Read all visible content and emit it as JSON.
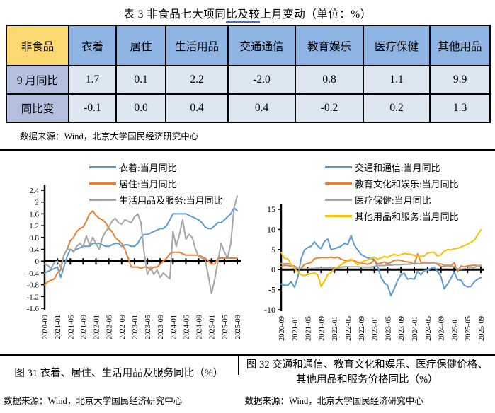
{
  "title": {
    "pre": "表 3  非食品七大项同",
    "underlined": "比及较",
    "post": "上月变动（单位：%）"
  },
  "table": {
    "corner_label": "非食品",
    "columns": [
      "衣着",
      "居住",
      "生活用品",
      "交通通信",
      "教育娱乐",
      "医疗保健",
      "其他用品"
    ],
    "rows": [
      {
        "label": "9 月同比",
        "values": [
          "1.7",
          "0.1",
          "2.2",
          "-2.0",
          "0.8",
          "1.1",
          "9.9"
        ]
      },
      {
        "label": "同比变",
        "values": [
          "-0.1",
          "0.0",
          "0.4",
          "0.4",
          "-0.2",
          "0.2",
          "1.3"
        ]
      }
    ],
    "colors": {
      "corner_bg": "#FBD971",
      "header_bg": "#8DB4E2",
      "row_label_bg": "#B2BFDF",
      "cell_bg": "#DCE6F1",
      "border": "#000000"
    }
  },
  "table_source": "数据来源：Wind，北京大学国民经济研究中心",
  "figures": [
    {
      "caption": "图 31  衣着、居住、生活用品及服务同比（%）",
      "source": "数据来源：Wind，北京大学国民经济研究中心"
    },
    {
      "caption": "图 32  交通和通信、教育文化和娱乐、医疗保健价格、其他用品和服务价格同比（%）",
      "source": "数据来源：Wind，北京大学国民经济研究中心"
    }
  ],
  "chart_data": [
    {
      "type": "line",
      "x_start": "2020-09",
      "x_end": "2025-09",
      "x_frequency": "monthly",
      "x_tick_labels": [
        "2020-09",
        "2021-01",
        "2021-05",
        "2021-09",
        "2022-01",
        "2022-05",
        "2022-09",
        "2023-01",
        "2023-05",
        "2023-09",
        "2024-01",
        "2024-05",
        "2024-09",
        "2025-01",
        "2025-05",
        "2025-09"
      ],
      "ylim": [
        -1.6,
        2.4
      ],
      "y_ticks": [
        2.4,
        2,
        1.6,
        1.2,
        0.8,
        0.4,
        0,
        -0.4,
        -0.8,
        -1.2,
        -1.6
      ],
      "grid": false,
      "legend_position": "top",
      "series": [
        {
          "name": "衣着:当月同比",
          "color": "#5B9BD5",
          "values": [
            -0.4,
            -0.35,
            -0.3,
            -0.25,
            -0.2,
            -0.55,
            -0.2,
            0.15,
            0.4,
            0.35,
            0.4,
            0.45,
            0.5,
            0.5,
            0.5,
            0.6,
            0.6,
            0.6,
            0.55,
            0.5,
            0.5,
            0.55,
            0.6,
            0.6,
            0.5,
            0.55,
            0.55,
            0.5,
            0.5,
            0.6,
            0.8,
            0.9,
            0.9,
            0.95,
            1.0,
            1.05,
            1.1,
            1.1,
            1.2,
            1.4,
            1.6,
            1.6,
            1.6,
            1.6,
            1.6,
            1.55,
            1.5,
            1.45,
            1.4,
            1.3,
            1.15,
            1.1,
            1.1,
            1.2,
            1.3,
            1.3,
            1.4,
            1.5,
            1.6,
            1.8,
            1.7
          ]
        },
        {
          "name": "居住:当月同比",
          "color": "#ED7D31",
          "values": [
            -0.8,
            -0.7,
            -0.65,
            -0.6,
            -0.4,
            -0.3,
            0.2,
            0.4,
            0.7,
            0.8,
            1.0,
            1.1,
            1.15,
            1.35,
            1.6,
            1.7,
            1.55,
            1.45,
            1.4,
            1.3,
            1.1,
            1.0,
            0.8,
            0.7,
            0.6,
            0.4,
            0.1,
            -0.2,
            -0.2,
            -0.2,
            -0.25,
            -0.2,
            -0.2,
            -0.3,
            -0.2,
            -0.2,
            -0.1,
            0.0,
            0.1,
            0.25,
            0.3,
            0.3,
            0.3,
            0.25,
            0.2,
            0.2,
            0.2,
            0.2,
            0.2,
            0.15,
            0.1,
            0.0,
            -0.1,
            -0.1,
            0.1,
            0.1,
            0.1,
            0.1,
            0.1,
            0.1,
            0.1
          ]
        },
        {
          "name": "生活用品及服务:当月同比",
          "color": "#A5A5A5",
          "values": [
            -0.1,
            -0.15,
            -0.25,
            -0.05,
            0.0,
            -0.2,
            0.2,
            0.4,
            0.4,
            0.3,
            0.5,
            0.6,
            0.5,
            0.85,
            0.55,
            0.8,
            0.6,
            0.4,
            0.8,
            1.0,
            1.15,
            1.35,
            1.45,
            1.3,
            1.25,
            1.4,
            1.35,
            1.3,
            1.5,
            1.6,
            1.3,
            0.3,
            -0.45,
            -0.2,
            -0.45,
            -0.3,
            -0.55,
            -0.4,
            -0.5,
            -0.6,
            1.0,
            0.5,
            0.9,
            1.4,
            0.75,
            0.9,
            0.8,
            0.4,
            0.15,
            0.1,
            0.05,
            -0.5,
            -1.1,
            -0.6,
            0.0,
            0.6,
            0.3,
            0.1,
            0.6,
            1.8,
            2.2
          ]
        }
      ]
    },
    {
      "type": "line",
      "x_start": "2020-09",
      "x_end": "2025-09",
      "x_frequency": "monthly",
      "x_tick_labels": [
        "2020-09",
        "2021-01",
        "2021-05",
        "2021-09",
        "2022-01",
        "2022-05",
        "2022-09",
        "2023-01",
        "2023-05",
        "2023-09",
        "2024-01",
        "2024-05",
        "2024-09",
        "2025-01",
        "2025-05",
        "2025-09"
      ],
      "ylim": [
        -10,
        15
      ],
      "y_ticks": [
        15,
        10,
        5,
        0,
        -5,
        -10
      ],
      "grid": false,
      "legend_position": "top",
      "series": [
        {
          "name": "交通和通信:当月同比",
          "color": "#5B9BD5",
          "values": [
            -3.6,
            -3.9,
            -3.9,
            -3.0,
            -4.4,
            -1.9,
            2.7,
            4.9,
            5.5,
            5.8,
            6.9,
            5.9,
            5.2,
            7.0,
            7.6,
            5.0,
            5.2,
            5.5,
            5.8,
            6.5,
            6.2,
            8.5,
            6.1,
            4.9,
            3.8,
            3.3,
            2.9,
            2.8,
            2.5,
            0.7,
            -1.9,
            -3.3,
            -3.9,
            -6.5,
            -4.7,
            -2.7,
            -1.3,
            -0.9,
            -2.4,
            -2.2,
            -2.4,
            -0.4,
            -1.3,
            -0.3,
            -0.2,
            0.3,
            0.6,
            -0.5,
            -1.7,
            -4.8,
            -3.6,
            -2.2,
            -0.6,
            -2.5,
            -2.6,
            -3.9,
            -4.3,
            -4.2,
            -3.1,
            -2.4,
            -2.0
          ]
        },
        {
          "name": "教育文化和娱乐:当月同比",
          "color": "#ED7D31",
          "values": [
            0.7,
            1.1,
            1.0,
            0.9,
            0.9,
            0.3,
            0.3,
            1.3,
            1.5,
            1.8,
            2.7,
            2.9,
            3.0,
            3.0,
            3.0,
            3.1,
            2.9,
            3.1,
            2.6,
            2.3,
            2.1,
            2.4,
            2.2,
            1.8,
            1.6,
            1.5,
            1.3,
            1.6,
            2.4,
            1.4,
            1.6,
            1.9,
            1.5,
            1.8,
            2.3,
            2.4,
            2.3,
            2.0,
            1.9,
            1.8,
            1.3,
            3.9,
            1.8,
            1.8,
            1.7,
            1.7,
            1.7,
            1.3,
            0.8,
            0.8,
            1.0,
            0.9,
            1.7,
            -0.5,
            0.9,
            0.7,
            0.9,
            1.0,
            1.1,
            1.0,
            0.8
          ]
        },
        {
          "name": "医疗保健:当月同比",
          "color": "#A5A5A5",
          "values": [
            1.5,
            1.5,
            1.5,
            1.3,
            0.4,
            0.3,
            0.2,
            0.2,
            0.2,
            0.3,
            0.3,
            0.4,
            0.4,
            0.4,
            0.4,
            0.4,
            0.5,
            0.5,
            0.6,
            0.7,
            0.7,
            0.7,
            0.7,
            0.7,
            0.6,
            0.6,
            0.6,
            0.6,
            0.8,
            1.0,
            1.0,
            1.0,
            1.1,
            1.1,
            1.2,
            1.2,
            1.2,
            1.3,
            1.3,
            1.4,
            1.5,
            1.5,
            1.5,
            1.6,
            1.6,
            1.6,
            1.6,
            1.5,
            1.4,
            1.1,
            1.1,
            1.1,
            0.7,
            0.2,
            0.1,
            0.2,
            0.3,
            0.3,
            0.5,
            0.9,
            1.1
          ]
        },
        {
          "name": "其他用品和服务:当月同比",
          "color": "#FFC000",
          "values": [
            4.3,
            2.8,
            2.7,
            1.3,
            0.2,
            -0.5,
            -1.3,
            -1.5,
            -1.2,
            -1.0,
            -0.8,
            -1.3,
            -4.2,
            -2.9,
            -1.2,
            -0.8,
            0.2,
            0.6,
            1.2,
            1.7,
            2.2,
            2.6,
            1.9,
            1.2,
            1.8,
            2.2,
            2.4,
            2.8,
            3.1,
            2.6,
            2.9,
            3.3,
            3.0,
            3.5,
            3.8,
            3.5,
            3.7,
            4.0,
            3.9,
            3.8,
            3.5,
            3.3,
            3.3,
            3.4,
            4.1,
            4.3,
            4.3,
            3.4,
            3.7,
            4.6,
            5.0,
            4.9,
            5.2,
            5.3,
            5.6,
            6.0,
            6.3,
            6.8,
            7.3,
            8.6,
            9.9
          ]
        }
      ]
    }
  ]
}
